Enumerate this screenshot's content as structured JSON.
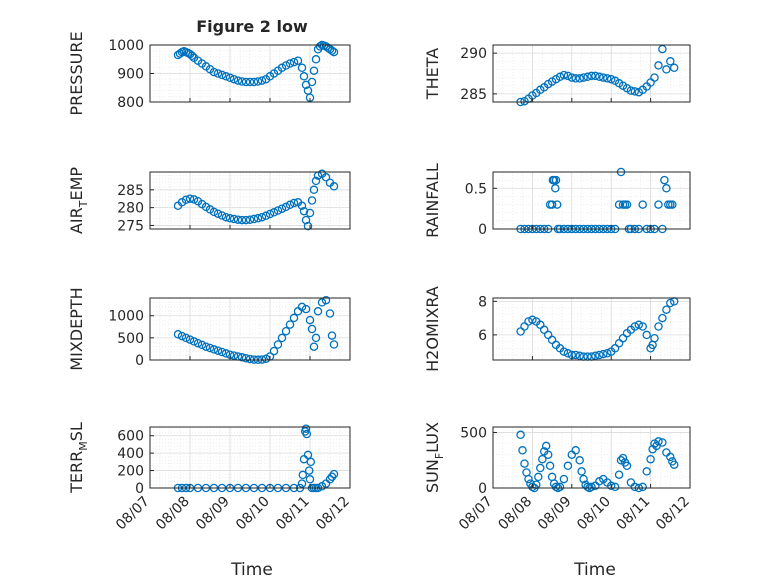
{
  "figure": {
    "title": "Figure 2 low",
    "xlabel": "Time",
    "x_ticks": [
      "08/07",
      "08/08",
      "08/09",
      "08/10",
      "08/11",
      "08/12"
    ],
    "marker_color": "#0072BD"
  },
  "chart_data": [
    {
      "type": "scatter",
      "title": "Figure 2 low",
      "ylabel": "PRESSURE",
      "ylim": [
        800,
        1000
      ],
      "yticks": [
        800,
        900,
        1000
      ],
      "series": [
        {
          "x": [
            7.7,
            7.75,
            7.8,
            7.85,
            7.9,
            7.95,
            8.0,
            8.05,
            8.1,
            8.2,
            8.3,
            8.4,
            8.5,
            8.6,
            8.7,
            8.8,
            8.9,
            9.0,
            9.1,
            9.2,
            9.3,
            9.4,
            9.5,
            9.6,
            9.7,
            9.8,
            9.9,
            10.0,
            10.1,
            10.2,
            10.3,
            10.4,
            10.5,
            10.6,
            10.7,
            10.8,
            10.85,
            10.9,
            10.95,
            11.0,
            11.05,
            11.1,
            11.15,
            11.2,
            11.25,
            11.3,
            11.35,
            11.4,
            11.45,
            11.5,
            11.55,
            11.6
          ],
          "y": [
            965,
            970,
            975,
            978,
            975,
            972,
            968,
            962,
            955,
            945,
            935,
            925,
            915,
            905,
            900,
            895,
            890,
            885,
            880,
            875,
            872,
            870,
            870,
            870,
            872,
            875,
            880,
            890,
            900,
            910,
            920,
            928,
            935,
            940,
            945,
            920,
            890,
            860,
            840,
            815,
            870,
            910,
            950,
            985,
            995,
            1000,
            998,
            995,
            990,
            985,
            980,
            975
          ]
        }
      ]
    },
    {
      "type": "scatter",
      "ylabel": "THETA",
      "ylim": [
        284,
        291
      ],
      "yticks": [
        285,
        290
      ],
      "series": [
        {
          "x": [
            7.7,
            7.8,
            7.9,
            8.0,
            8.1,
            8.2,
            8.3,
            8.4,
            8.5,
            8.6,
            8.7,
            8.8,
            8.9,
            9.0,
            9.1,
            9.2,
            9.3,
            9.4,
            9.5,
            9.6,
            9.7,
            9.8,
            9.9,
            10.0,
            10.1,
            10.2,
            10.3,
            10.4,
            10.5,
            10.6,
            10.7,
            10.8,
            10.9,
            11.0,
            11.1,
            11.2,
            11.3,
            11.4,
            11.5,
            11.6
          ],
          "y": [
            283.8,
            284.1,
            284.4,
            284.8,
            285.1,
            285.5,
            285.8,
            286.2,
            286.5,
            286.8,
            287.1,
            287.3,
            287.2,
            287.0,
            286.9,
            286.9,
            287.0,
            287.1,
            287.2,
            287.2,
            287.1,
            287.0,
            286.9,
            286.8,
            286.6,
            286.3,
            286.0,
            285.7,
            285.4,
            285.3,
            285.2,
            285.5,
            285.9,
            286.4,
            287.0,
            288.5,
            290.5,
            288.0,
            289.0,
            288.2
          ]
        }
      ]
    },
    {
      "type": "scatter",
      "ylabel_main": "AIR",
      "ylabel_sub": "T",
      "ylabel_rest": "EMP",
      "ylim": [
        274,
        290
      ],
      "yticks": [
        275,
        280,
        285
      ],
      "series": [
        {
          "x": [
            7.7,
            7.8,
            7.9,
            8.0,
            8.1,
            8.2,
            8.3,
            8.4,
            8.5,
            8.6,
            8.7,
            8.8,
            8.9,
            9.0,
            9.1,
            9.2,
            9.3,
            9.4,
            9.5,
            9.6,
            9.7,
            9.8,
            9.9,
            10.0,
            10.1,
            10.2,
            10.3,
            10.4,
            10.5,
            10.6,
            10.7,
            10.8,
            10.85,
            10.9,
            10.95,
            11.0,
            11.05,
            11.1,
            11.15,
            11.2,
            11.3,
            11.4,
            11.5,
            11.6
          ],
          "y": [
            280.5,
            281.5,
            282.2,
            282.5,
            282.3,
            281.8,
            281.0,
            280.2,
            279.5,
            278.8,
            278.3,
            277.8,
            277.3,
            277.0,
            276.8,
            276.6,
            276.5,
            276.5,
            276.6,
            276.8,
            277.0,
            277.3,
            277.7,
            278.2,
            278.7,
            279.2,
            279.7,
            280.2,
            280.8,
            281.3,
            281.5,
            280.5,
            279.0,
            276.5,
            274.8,
            278.5,
            282.0,
            285.0,
            287.5,
            289.0,
            289.5,
            288.5,
            287.0,
            286.0
          ]
        }
      ]
    },
    {
      "type": "scatter",
      "ylabel": "RAINFALL",
      "ylim": [
        0,
        0.7
      ],
      "yticks": [
        0,
        0.5
      ],
      "series": [
        {
          "x": [
            7.7,
            7.8,
            7.9,
            8.0,
            8.1,
            8.2,
            8.3,
            8.4,
            8.45,
            8.5,
            8.52,
            8.55,
            8.58,
            8.6,
            8.63,
            8.65,
            8.7,
            8.8,
            8.9,
            9.0,
            9.1,
            9.2,
            9.3,
            9.4,
            9.5,
            9.6,
            9.7,
            9.8,
            9.9,
            10.0,
            10.1,
            10.2,
            10.25,
            10.3,
            10.35,
            10.4,
            10.45,
            10.5,
            10.6,
            10.7,
            10.8,
            10.9,
            11.0,
            11.1,
            11.2,
            11.3,
            11.35,
            11.4,
            11.45,
            11.5,
            11.55
          ],
          "y": [
            0,
            0,
            0,
            0,
            0,
            0,
            0,
            0,
            0.3,
            0.3,
            0.6,
            0.6,
            0.5,
            0.6,
            0.3,
            0,
            0,
            0,
            0,
            0,
            0,
            0,
            0,
            0,
            0,
            0,
            0,
            0,
            0,
            0,
            0,
            0.3,
            0.7,
            0.3,
            0.3,
            0.3,
            0,
            0,
            0,
            0,
            0.3,
            0,
            0,
            0,
            0.3,
            0,
            0.6,
            0.5,
            0.3,
            0.3,
            0.3
          ]
        }
      ]
    },
    {
      "type": "scatter",
      "ylabel": "MIXDEPTH",
      "ylim": [
        0,
        1400
      ],
      "yticks": [
        0,
        500,
        1000
      ],
      "series": [
        {
          "x": [
            7.7,
            7.8,
            7.9,
            8.0,
            8.1,
            8.2,
            8.3,
            8.4,
            8.5,
            8.6,
            8.7,
            8.8,
            8.9,
            9.0,
            9.1,
            9.2,
            9.3,
            9.4,
            9.5,
            9.6,
            9.7,
            9.8,
            9.9,
            10.0,
            10.1,
            10.2,
            10.3,
            10.4,
            10.5,
            10.6,
            10.7,
            10.8,
            10.9,
            11.0,
            11.05,
            11.1,
            11.15,
            11.2,
            11.3,
            11.4,
            11.5,
            11.55,
            11.6
          ],
          "y": [
            580,
            540,
            500,
            460,
            420,
            380,
            340,
            300,
            270,
            240,
            210,
            180,
            150,
            120,
            100,
            80,
            60,
            40,
            20,
            10,
            5,
            10,
            30,
            80,
            200,
            350,
            500,
            650,
            800,
            950,
            1100,
            1200,
            1150,
            900,
            700,
            300,
            500,
            1100,
            1300,
            1350,
            1050,
            550,
            350
          ]
        }
      ]
    },
    {
      "type": "scatter",
      "ylabel": "H2OMIXRA",
      "ylim": [
        4.5,
        8.2
      ],
      "yticks": [
        6,
        8
      ],
      "series": [
        {
          "x": [
            7.7,
            7.8,
            7.9,
            8.0,
            8.1,
            8.2,
            8.3,
            8.4,
            8.5,
            8.6,
            8.7,
            8.8,
            8.9,
            9.0,
            9.1,
            9.2,
            9.3,
            9.4,
            9.5,
            9.6,
            9.7,
            9.8,
            9.9,
            10.0,
            10.1,
            10.2,
            10.3,
            10.4,
            10.5,
            10.6,
            10.7,
            10.8,
            10.9,
            11.0,
            11.05,
            11.1,
            11.2,
            11.3,
            11.4,
            11.5,
            11.6
          ],
          "y": [
            6.2,
            6.5,
            6.8,
            6.9,
            6.8,
            6.6,
            6.3,
            6.0,
            5.7,
            5.4,
            5.2,
            5.0,
            4.9,
            4.8,
            4.8,
            4.75,
            4.7,
            4.7,
            4.7,
            4.75,
            4.8,
            4.85,
            4.9,
            5.0,
            5.2,
            5.5,
            5.8,
            6.1,
            6.3,
            6.5,
            6.6,
            6.5,
            6.0,
            5.2,
            5.4,
            5.8,
            6.5,
            7.0,
            7.5,
            7.9,
            8.0
          ]
        }
      ]
    },
    {
      "type": "scatter",
      "ylabel_main": "TERR",
      "ylabel_sub": "M",
      "ylabel_rest": "SL",
      "ylim": [
        0,
        700
      ],
      "yticks": [
        0,
        200,
        400,
        600
      ],
      "series": [
        {
          "x": [
            7.7,
            7.8,
            7.9,
            8.0,
            8.2,
            8.4,
            8.6,
            8.8,
            9.0,
            9.2,
            9.4,
            9.6,
            9.8,
            10.0,
            10.2,
            10.4,
            10.6,
            10.75,
            10.8,
            10.82,
            10.85,
            10.88,
            10.9,
            10.92,
            10.95,
            10.98,
            11.0,
            11.02,
            11.05,
            11.1,
            11.15,
            11.2,
            11.3,
            11.4,
            11.5,
            11.55,
            11.6
          ],
          "y": [
            0,
            0,
            0,
            0,
            0,
            0,
            0,
            0,
            0,
            0,
            0,
            0,
            0,
            0,
            0,
            0,
            0,
            0,
            50,
            150,
            330,
            650,
            680,
            620,
            380,
            200,
            100,
            300,
            0,
            0,
            0,
            0,
            20,
            50,
            100,
            130,
            160
          ]
        }
      ]
    },
    {
      "type": "scatter",
      "ylabel_main": "SUN",
      "ylabel_sub": "F",
      "ylabel_rest": "LUX",
      "ylim": [
        0,
        550
      ],
      "yticks": [
        0,
        500
      ],
      "series": [
        {
          "x": [
            7.7,
            7.75,
            7.8,
            7.85,
            7.9,
            7.95,
            8.0,
            8.05,
            8.1,
            8.15,
            8.2,
            8.25,
            8.3,
            8.35,
            8.4,
            8.45,
            8.5,
            8.55,
            8.6,
            8.65,
            8.7,
            8.8,
            8.9,
            9.0,
            9.1,
            9.2,
            9.25,
            9.3,
            9.35,
            9.4,
            9.45,
            9.5,
            9.6,
            9.7,
            9.8,
            9.9,
            10.0,
            10.1,
            10.2,
            10.25,
            10.3,
            10.35,
            10.4,
            10.5,
            10.6,
            10.7,
            10.8,
            10.9,
            11.0,
            11.05,
            11.1,
            11.15,
            11.2,
            11.3,
            11.4,
            11.5,
            11.55,
            11.6
          ],
          "y": [
            480,
            340,
            220,
            140,
            80,
            40,
            10,
            0,
            30,
            100,
            180,
            260,
            330,
            380,
            300,
            200,
            100,
            40,
            10,
            0,
            10,
            80,
            200,
            300,
            340,
            250,
            150,
            80,
            30,
            10,
            0,
            10,
            20,
            60,
            80,
            50,
            20,
            10,
            120,
            250,
            270,
            230,
            200,
            50,
            10,
            0,
            10,
            150,
            260,
            350,
            400,
            380,
            420,
            410,
            320,
            280,
            240,
            210
          ]
        }
      ]
    }
  ]
}
